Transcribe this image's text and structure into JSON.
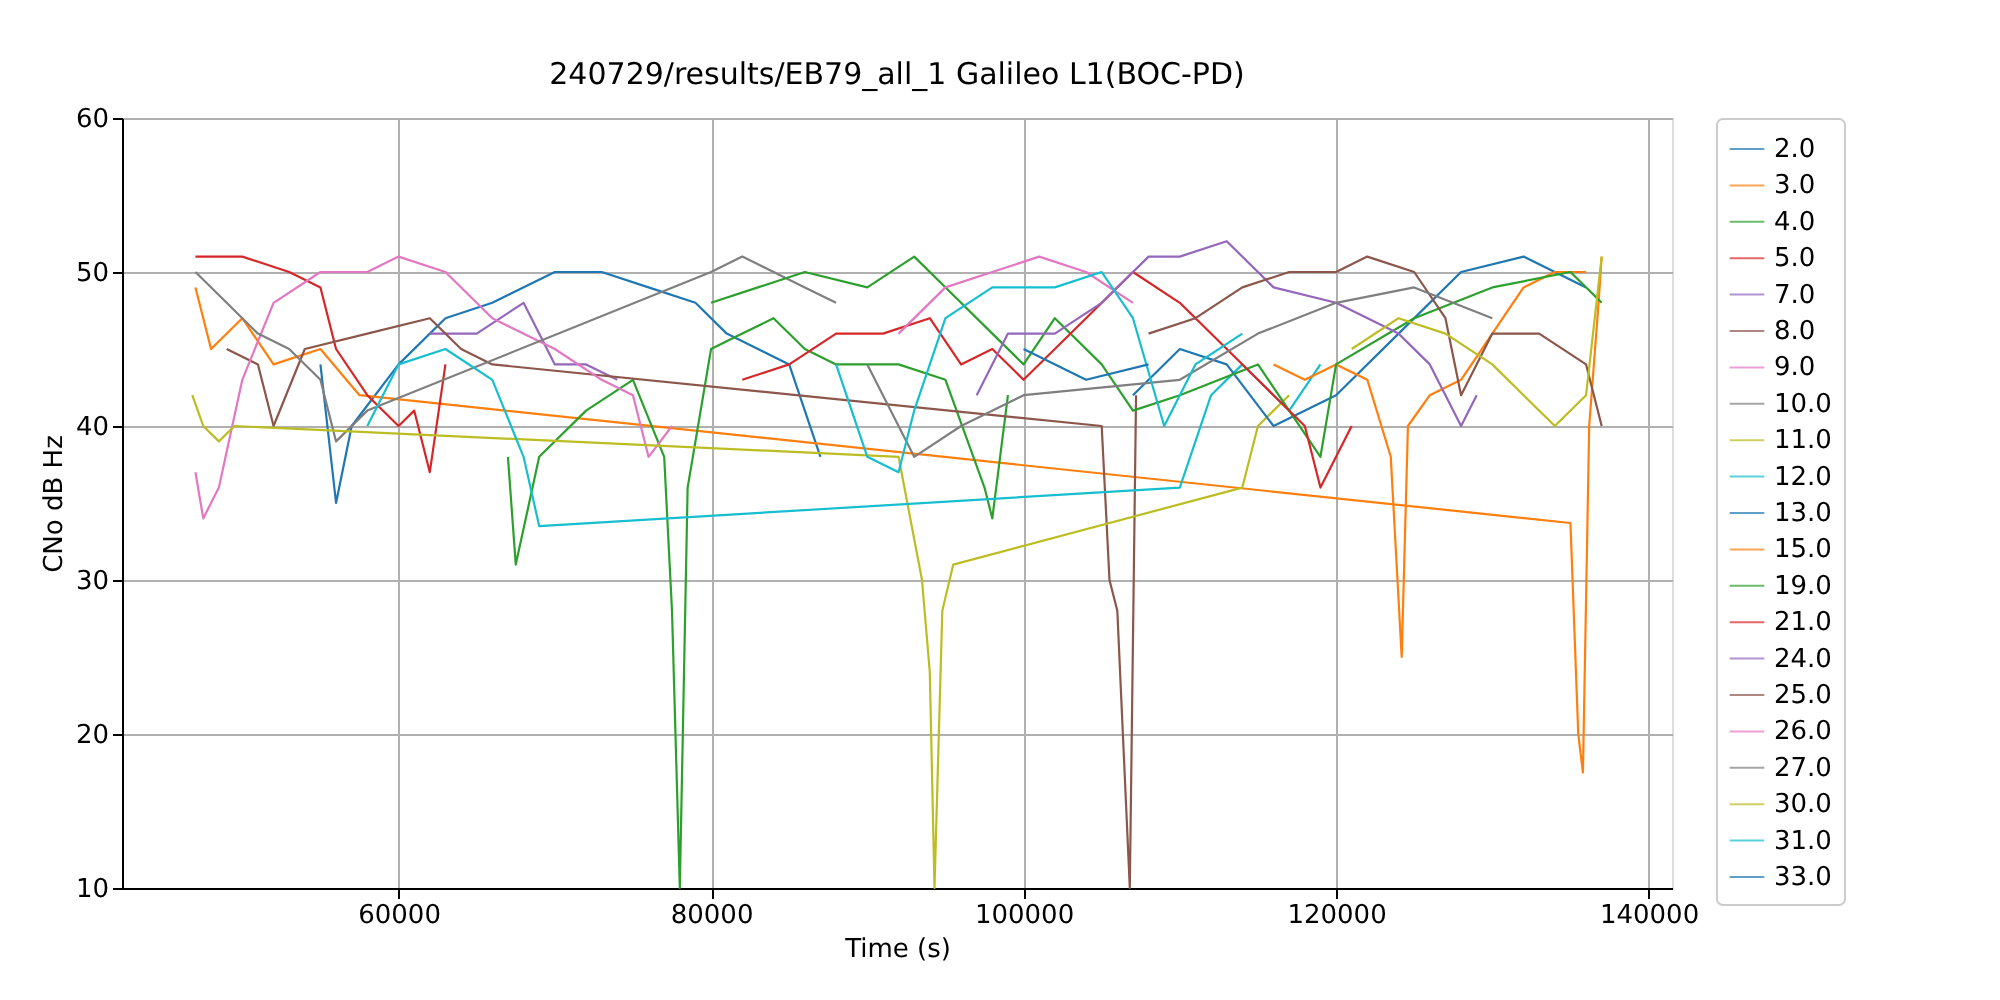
{
  "chart_data": {
    "type": "line",
    "title": "240729/results/EB79_all_1 Galileo L1(BOC-PD)",
    "xlabel": "Time (s)",
    "ylabel": "CNo dB Hz",
    "xlim": [
      42300,
      141500
    ],
    "xticks": [
      60000,
      80000,
      100000,
      120000,
      140000
    ],
    "ylim": [
      10,
      60
    ],
    "yticks": [
      10,
      20,
      30,
      40,
      50,
      60
    ],
    "grid": true,
    "legend": "right",
    "marker": "none",
    "line_style": "solid",
    "series": [
      {
        "name": "2.0",
        "color": "#1f77b4",
        "x": [
          55000,
          56000,
          57000,
          60000,
          63000,
          66000,
          70000,
          73000,
          76000,
          79000,
          81000,
          85000,
          87000
        ],
        "values": [
          44,
          35,
          40,
          44,
          47,
          48,
          50,
          50,
          49,
          48,
          46,
          44,
          38
        ]
      },
      {
        "name": "3.0",
        "color": "#ff7f0e",
        "x": [
          47000,
          48000,
          50000,
          52000,
          55000,
          57500,
          135000,
          135500,
          135800,
          136200,
          136800,
          137000
        ],
        "values": [
          49,
          45,
          47,
          44,
          45,
          42,
          33.7,
          20,
          17.5,
          40,
          48,
          51
        ]
      },
      {
        "name": "4.0",
        "color": "#2ca02c",
        "x": [
          67000,
          67500,
          69000,
          72000,
          75000,
          77000,
          77500,
          78000,
          78500,
          80000,
          82000,
          84000,
          86000,
          88000,
          92000,
          95000,
          97500,
          98000,
          99000
        ],
        "values": [
          38,
          31,
          38,
          41,
          43,
          38,
          28,
          10,
          36,
          45,
          46,
          47,
          45,
          44,
          44,
          43,
          36,
          34,
          42
        ]
      },
      {
        "name": "5.0",
        "color": "#d62728",
        "x": [
          47000,
          50000,
          53000,
          55000,
          56000,
          58000,
          60000,
          61000,
          62000,
          63000
        ],
        "values": [
          51,
          51,
          50,
          49,
          45,
          42,
          40,
          41,
          37,
          44
        ]
      },
      {
        "name": "7.0",
        "color": "#9467bd",
        "x": [
          62000,
          65000,
          68000,
          70000,
          72000,
          74000
        ],
        "values": [
          46,
          46,
          48,
          44,
          44,
          43
        ]
      },
      {
        "name": "8.0",
        "color": "#8c564b",
        "x": [
          49000,
          51000,
          52000,
          54000,
          58000,
          62000,
          64000,
          66000,
          105000,
          105500,
          106000,
          106800,
          107200
        ],
        "values": [
          45,
          44,
          40,
          45,
          46,
          47,
          45,
          44,
          40,
          30,
          28,
          10,
          42
        ]
      },
      {
        "name": "9.0",
        "color": "#e377c2",
        "x": [
          47000,
          47500,
          48500,
          50000,
          52000,
          55000,
          58000,
          60000,
          63000,
          66000,
          70000,
          73000,
          75000,
          76000,
          77500
        ],
        "values": [
          37,
          34,
          36,
          43,
          48,
          50,
          50,
          51,
          50,
          47,
          45,
          43,
          42,
          38,
          40
        ]
      },
      {
        "name": "10.0",
        "color": "#7f7f7f",
        "x": [
          47000,
          49000,
          51000,
          53000,
          55000,
          56000,
          58000,
          80000,
          82000,
          84000,
          86000,
          88000
        ],
        "values": [
          50,
          48,
          46,
          45,
          43,
          39,
          41,
          50,
          51,
          50,
          49,
          48
        ]
      },
      {
        "name": "11.0",
        "color": "#bcbd22",
        "x": [
          46800,
          47500,
          48500,
          49500,
          92000,
          93500,
          94000,
          94300,
          94800,
          95500,
          114000,
          115000,
          117000
        ],
        "values": [
          42,
          40,
          39,
          40,
          38,
          30,
          24,
          10,
          28,
          31,
          36,
          40,
          42
        ]
      },
      {
        "name": "12.0",
        "color": "#17becf",
        "x": [
          58000,
          60000,
          63000,
          66000,
          68000,
          69000,
          110000,
          112000,
          114000,
          117000,
          119000
        ],
        "values": [
          40,
          44,
          45,
          43,
          38,
          33.5,
          36,
          42,
          44,
          41,
          44
        ]
      },
      {
        "name": "13.0",
        "color": "#1f77b4",
        "x": [
          107000,
          110000,
          113000,
          116000,
          120000,
          124000,
          128000,
          132000,
          136000
        ],
        "values": [
          42,
          45,
          44,
          40,
          42,
          46,
          50,
          51,
          49
        ]
      },
      {
        "name": "15.0",
        "color": "#ff7f0e",
        "x": [
          116000,
          118000,
          120000,
          122000,
          123500,
          124200,
          124600,
          126000,
          128000,
          130000,
          132000,
          134000,
          136000
        ],
        "values": [
          44,
          43,
          44,
          43,
          38,
          25,
          40,
          42,
          43,
          46,
          49,
          50,
          50
        ]
      },
      {
        "name": "19.0",
        "color": "#2ca02c",
        "x": [
          80000,
          83000,
          86000,
          90000,
          93000,
          96000,
          98000,
          100000,
          102000,
          105000,
          107000,
          110000,
          115000,
          119000,
          120000,
          125000,
          130000,
          135000,
          137000
        ],
        "values": [
          48,
          49,
          50,
          49,
          51,
          48,
          46,
          44,
          47,
          44,
          41,
          42,
          44,
          38,
          44,
          47,
          49,
          50,
          48
        ]
      },
      {
        "name": "21.0",
        "color": "#d62728",
        "x": [
          82000,
          85000,
          88000,
          91000,
          94000,
          96000,
          98000,
          100000,
          104000,
          107000,
          110000,
          115000,
          118000,
          119000,
          121000
        ],
        "values": [
          43,
          44,
          46,
          46,
          47,
          44,
          45,
          43,
          47,
          50,
          48,
          43,
          40,
          36,
          40
        ]
      },
      {
        "name": "24.0",
        "color": "#9467bd",
        "x": [
          97000,
          99000,
          102000,
          105000,
          108000,
          110000,
          113000,
          116000,
          120000,
          124000,
          126000,
          128000,
          129000
        ],
        "values": [
          42,
          46,
          46,
          48,
          51,
          51,
          52,
          49,
          48,
          46,
          44,
          40,
          42
        ]
      },
      {
        "name": "25.0",
        "color": "#8c564b",
        "x": [
          108000,
          111000,
          114000,
          117000,
          120000,
          122000,
          125000,
          127000,
          128000,
          130000,
          133000,
          136000,
          137000
        ],
        "values": [
          46,
          47,
          49,
          50,
          50,
          51,
          50,
          47,
          42,
          46,
          46,
          44,
          40
        ]
      },
      {
        "name": "26.0",
        "color": "#e377c2",
        "x": [
          92000,
          95000,
          98000,
          101000,
          104000,
          107000
        ],
        "values": [
          46,
          49,
          50,
          51,
          50,
          48
        ]
      },
      {
        "name": "27.0",
        "color": "#7f7f7f",
        "x": [
          90000,
          93000,
          96000,
          100000,
          110000,
          115000,
          120000,
          125000,
          130000
        ],
        "values": [
          44,
          38,
          40,
          42,
          43,
          46,
          48,
          49,
          47
        ]
      },
      {
        "name": "30.0",
        "color": "#bcbd22",
        "x": [
          121000,
          124000,
          127000,
          130000,
          132000,
          134000,
          136000,
          137000
        ],
        "values": [
          45,
          47,
          46,
          44,
          42,
          40,
          42,
          51
        ]
      },
      {
        "name": "31.0",
        "color": "#17becf",
        "x": [
          88000,
          90000,
          92000,
          93000,
          95000,
          98000,
          102000,
          105000,
          107000,
          109000,
          111000,
          114000
        ],
        "values": [
          44,
          38,
          37,
          41,
          47,
          49,
          49,
          50,
          47,
          40,
          44,
          46
        ]
      },
      {
        "name": "33.0",
        "color": "#1f77b4",
        "x": [
          100000,
          104000,
          108000
        ],
        "values": [
          45,
          43,
          44
        ]
      }
    ]
  }
}
